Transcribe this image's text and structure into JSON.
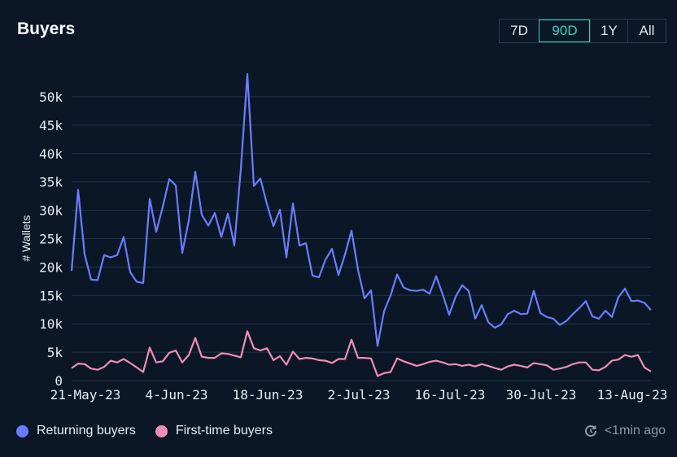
{
  "header": {
    "title": "Buyers"
  },
  "range_buttons": [
    "7D",
    "90D",
    "1Y",
    "All"
  ],
  "active_range": "90D",
  "legend": [
    {
      "label": "Returning buyers",
      "color": "#6a7dff"
    },
    {
      "label": "First-time buyers",
      "color": "#f08db4"
    }
  ],
  "updated_text": "<1min ago",
  "chart_data": {
    "type": "line",
    "title": "",
    "xlabel": "",
    "ylabel": "# Wallets",
    "ylim": [
      0,
      50000
    ],
    "y_ticks": [
      "0",
      "5k",
      "10k",
      "15k",
      "20k",
      "25k",
      "30k",
      "35k",
      "40k",
      "45k",
      "50k"
    ],
    "x_tick_labels": [
      "21-May-23",
      "4-Jun-23",
      "18-Jun-23",
      "2-Jul-23",
      "16-Jul-23",
      "30-Jul-23",
      "13-Aug-23"
    ],
    "grid": true,
    "x_start_date": "2023-05-21",
    "series": [
      {
        "name": "Returning buyers",
        "color": "#6a7dff",
        "values": [
          19300,
          33600,
          22200,
          17800,
          17700,
          22100,
          21700,
          22100,
          25300,
          19100,
          17400,
          17200,
          32000,
          26200,
          30600,
          35500,
          34400,
          22500,
          28200,
          36800,
          29200,
          27300,
          29500,
          25300,
          29400,
          23800,
          37300,
          54000,
          34300,
          35600,
          31100,
          27200,
          30100,
          21700,
          31200,
          23800,
          24200,
          18500,
          18200,
          21300,
          23200,
          18600,
          22200,
          26400,
          19500,
          14500,
          15900,
          6100,
          12200,
          15000,
          18700,
          16400,
          15900,
          15800,
          16000,
          15300,
          18400,
          15200,
          11600,
          14800,
          16800,
          15800,
          10900,
          13300,
          10300,
          9300,
          9900,
          11700,
          12300,
          11700,
          11800,
          15800,
          11900,
          11200,
          10900,
          9800,
          10500,
          11700,
          12800,
          14000,
          11300,
          10900,
          12300,
          11200,
          14700,
          16200,
          14000,
          14100,
          13700,
          12400
        ]
      },
      {
        "name": "First-time buyers",
        "color": "#f08db4",
        "values": [
          2200,
          3000,
          2900,
          2100,
          1900,
          2400,
          3500,
          3200,
          3800,
          3100,
          2300,
          1500,
          5800,
          3200,
          3400,
          4900,
          5300,
          3200,
          4500,
          7500,
          4200,
          4000,
          4000,
          4800,
          4700,
          4400,
          4100,
          8700,
          5700,
          5300,
          5700,
          3600,
          4300,
          2800,
          5100,
          3800,
          4000,
          3900,
          3600,
          3500,
          3100,
          3800,
          3800,
          7200,
          4000,
          4000,
          3900,
          800,
          1300,
          1500,
          3900,
          3400,
          3000,
          2600,
          2900,
          3300,
          3500,
          3200,
          2800,
          2900,
          2600,
          2800,
          2500,
          2900,
          2600,
          2200,
          1900,
          2500,
          2800,
          2600,
          2300,
          3100,
          2900,
          2700,
          1900,
          2100,
          2400,
          2900,
          3200,
          3200,
          1900,
          1800,
          2400,
          3500,
          3700,
          4500,
          4200,
          4500,
          2300,
          1600
        ]
      }
    ]
  }
}
